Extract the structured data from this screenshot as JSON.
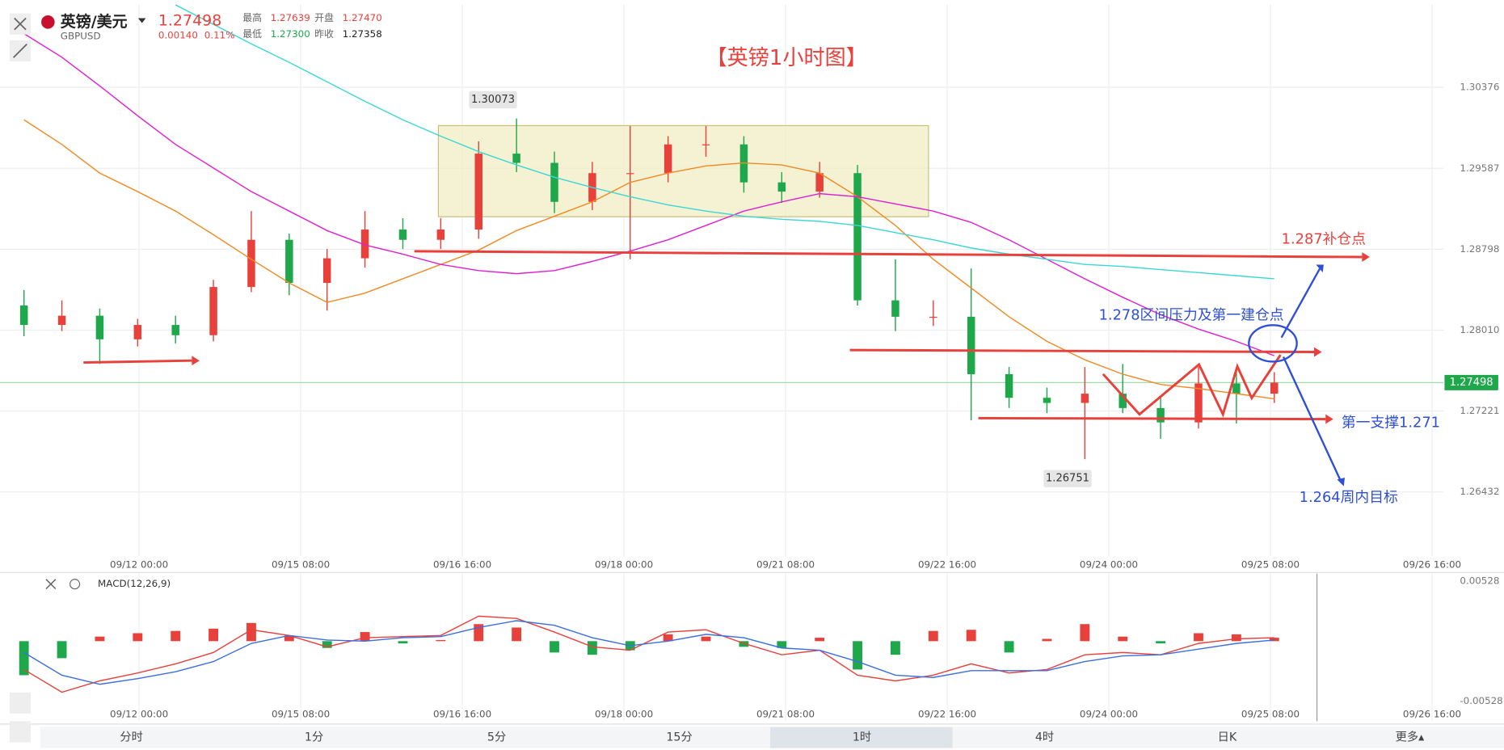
{
  "header": {
    "name": "英镑/美元",
    "code": "GBPUSD",
    "change": "0.00140",
    "change_pct": "0.11%",
    "high_label": "最高",
    "high": "1.27639",
    "open_label": "开盘",
    "open": "1.27470",
    "low_label": "最低",
    "low": "1.27300",
    "prev_label": "昨收",
    "prev": "1.27358"
  },
  "tabs": [
    "分时",
    "1分",
    "5分",
    "15分",
    "1时",
    "4时",
    "日K",
    "更多▴"
  ],
  "chart_data": [
    {
      "type": "candlestick",
      "title": "【英镑1小时图】",
      "annotations": [
        "1.287补仓点",
        "1.278区间压力及第一建仓点",
        "第一支撑1.271",
        "1.264周内目标"
      ],
      "xlabels": [
        "09/12 00:00",
        "09/15 08:00",
        "09/16 16:00",
        "09/18 00:00",
        "09/21 08:00",
        "09/22 16:00",
        "09/24 00:00",
        "09/25 08:00",
        "09/26 16:00"
      ],
      "ylim": [
        1.25805,
        1.31181
      ],
      "yticks": [
        1.30376,
        1.29587,
        1.28798,
        {
          "value": 1.2801,
          "label": "1.28010"
        },
        1.27221,
        1.26432
      ],
      "up_color": "#e8413c",
      "down_color": "#1fa84b",
      "open": [
        1.2825,
        1.2806,
        1.2815,
        1.2792,
        1.2806,
        1.2796,
        1.2843,
        1.2889,
        1.2847,
        1.2871,
        1.2899,
        1.2889,
        1.2899,
        1.2973,
        1.2964,
        1.2926,
        1.2954,
        1.2954,
        1.2982,
        1.2982,
        1.2945,
        1.2936,
        1.2954,
        1.283,
        1.2814,
        1.2814,
        1.2758,
        1.2735,
        1.273,
        1.2739,
        1.2725,
        1.2711,
        1.2749,
        1.2739
      ],
      "high": [
        1.284,
        1.283,
        1.2822,
        1.2812,
        1.2815,
        1.285,
        1.2917,
        1.2895,
        1.288,
        1.2917,
        1.291,
        1.291,
        1.2985,
        1.30073,
        1.2975,
        1.2965,
        1.3,
        1.299,
        1.3,
        1.299,
        1.2955,
        1.2965,
        1.2962,
        1.287,
        1.283,
        1.2861,
        1.2765,
        1.2745,
        1.2765,
        1.2768,
        1.2735,
        1.2765,
        1.27639,
        1.276
      ],
      "low": [
        1.2795,
        1.28,
        1.2768,
        1.2785,
        1.2788,
        1.279,
        1.2838,
        1.2835,
        1.282,
        1.2862,
        1.288,
        1.288,
        1.289,
        1.2955,
        1.2915,
        1.2918,
        1.287,
        1.2945,
        1.297,
        1.2935,
        1.2925,
        1.293,
        1.2825,
        1.28,
        1.2805,
        1.2713,
        1.2725,
        1.272,
        1.26751,
        1.272,
        1.2695,
        1.2705,
        1.271,
        1.273
      ],
      "close": [
        1.2806,
        1.2815,
        1.2792,
        1.2806,
        1.2796,
        1.2843,
        1.2889,
        1.2847,
        1.2871,
        1.2899,
        1.2889,
        1.2899,
        1.2973,
        1.2964,
        1.2926,
        1.2954,
        1.2954,
        1.2982,
        1.2982,
        1.2945,
        1.2936,
        1.2954,
        1.283,
        1.2814,
        1.2814,
        1.2758,
        1.2735,
        1.273,
        1.2739,
        1.2725,
        1.2711,
        1.2749,
        1.2739,
        1.27498
      ],
      "series": [
        {
          "color": "#f08a24",
          "values": [
            1.3006,
            1.2982,
            1.2954,
            1.2936,
            1.2917,
            1.2894,
            1.287,
            1.2847,
            1.2828,
            1.2837,
            1.2851,
            1.2865,
            1.2879,
            1.2898,
            1.2912,
            1.2926,
            1.2945,
            1.2954,
            1.2961,
            1.2964,
            1.2962,
            1.2954,
            1.2931,
            1.2903,
            1.287,
            1.2842,
            1.2814,
            1.279,
            1.2772,
            1.2758,
            1.2748,
            1.2744,
            1.2739,
            1.2734
          ]
        },
        {
          "color": "#e020d0",
          "values": [
            1.309,
            1.3067,
            1.3039,
            1.301,
            1.2982,
            1.2959,
            1.2936,
            1.2917,
            1.2898,
            1.2884,
            1.2875,
            1.2865,
            1.2859,
            1.2856,
            1.2859,
            1.2868,
            1.2878,
            1.2889,
            1.2903,
            1.2917,
            1.2926,
            1.2934,
            1.2931,
            1.2924,
            1.2917,
            1.2906,
            1.2889,
            1.287,
            1.2851,
            1.2833,
            1.2816,
            1.2802,
            1.279,
            1.2776
          ]
        },
        {
          "color": "#3dd6d6",
          "values": [
            null,
            null,
            null,
            null,
            1.3118,
            1.3099,
            1.308,
            1.3062,
            1.3043,
            1.3024,
            1.3006,
            1.299,
            1.2975,
            1.2962,
            1.295,
            1.294,
            1.2931,
            1.2923,
            1.2917,
            1.2912,
            1.2909,
            1.2907,
            1.2903,
            1.2896,
            1.2889,
            1.2881,
            1.2875,
            1.287,
            1.2865,
            1.2863,
            1.286,
            1.2857,
            1.2854,
            1.2851
          ]
        }
      ]
    },
    {
      "type": "macd",
      "title": "MACD(12,26,9)",
      "ylim": [
        -0.00528,
        0.00528
      ],
      "yticks": [
        0.00528,
        -0.00528
      ],
      "up_color": "#e8413c",
      "down_color": "#1fa84b",
      "histogram": [
        -0.003,
        -0.0015,
        0.0004,
        0.0007,
        0.0009,
        0.0011,
        0.0016,
        0.0005,
        -0.0006,
        0.0008,
        -0.0002,
        0.0001,
        0.0015,
        0.0012,
        -0.001,
        -0.0012,
        -0.0008,
        0.0006,
        0.0004,
        -0.0005,
        -0.0006,
        0.0003,
        -0.0025,
        -0.0012,
        0.0009,
        0.001,
        -0.001,
        0.0002,
        0.0015,
        0.0004,
        -0.0002,
        0.0007,
        0.0006,
        0.0003
      ],
      "series": [
        {
          "color": "#e8413c",
          "values": [
            -0.0025,
            -0.0045,
            -0.0035,
            -0.0028,
            -0.002,
            -0.001,
            0.001,
            0.0005,
            -0.0005,
            0.0003,
            0.0004,
            0.0005,
            0.0022,
            0.002,
            0.0008,
            -0.0005,
            -0.0008,
            0.0008,
            0.001,
            -0.0002,
            -0.0012,
            -0.0008,
            -0.003,
            -0.0035,
            -0.003,
            -0.002,
            -0.0028,
            -0.0025,
            -0.0012,
            -0.001,
            -0.0012,
            -0.0002,
            0.0002,
            0.0003
          ]
        },
        {
          "color": "#3b6fe0",
          "values": [
            -0.001,
            -0.003,
            -0.0038,
            -0.0033,
            -0.0027,
            -0.0018,
            -0.0002,
            0.0005,
            0.0001,
            0.0,
            0.0003,
            0.0004,
            0.0012,
            0.0018,
            0.0014,
            0.0003,
            -0.0004,
            0.0,
            0.0006,
            0.0003,
            -0.0006,
            -0.0008,
            -0.0018,
            -0.003,
            -0.0032,
            -0.0026,
            -0.0026,
            -0.0026,
            -0.0018,
            -0.0013,
            -0.0012,
            -0.0007,
            -0.0002,
            0.0001
          ]
        }
      ]
    }
  ]
}
